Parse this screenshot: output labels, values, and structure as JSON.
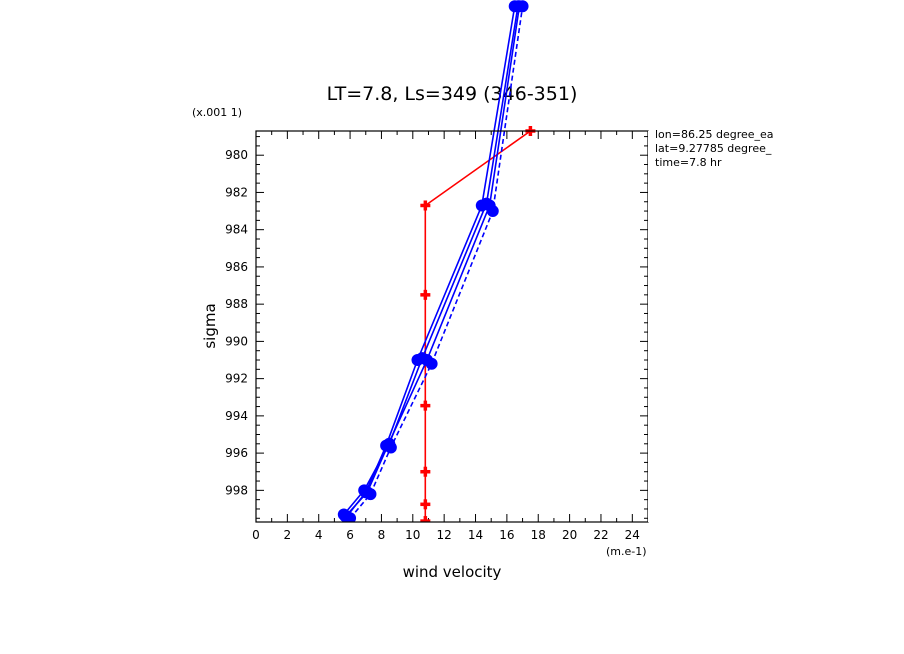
{
  "chart_data": {
    "type": "line",
    "title": "LT=7.8, Ls=349 (346-351)",
    "xlabel": "wind velocity",
    "ylabel": "sigma",
    "x_scale_label": "(m.e-1)",
    "y_scale_label": "(x.001 1)",
    "xlim": [
      0,
      25
    ],
    "ylim": [
      999.7,
      978.7
    ],
    "y_inverted": true,
    "x_ticks": [
      "0",
      "2",
      "4",
      "6",
      "8",
      "10",
      "12",
      "14",
      "16",
      "18",
      "20",
      "22",
      "24"
    ],
    "y_ticks": [
      "980",
      "982",
      "984",
      "986",
      "988",
      "990",
      "992",
      "994",
      "996",
      "998"
    ],
    "annotations": [
      "lon=86.25 degree_ea",
      "lat=9.27785 degree_",
      "time=7.8 hr"
    ],
    "colors": {
      "red": "#ff0000",
      "blue": "#0000ff"
    },
    "series": [
      {
        "color": "red",
        "style": "solid",
        "marker": "plus",
        "x": [
          10.8,
          10.8,
          10.8,
          10.8,
          10.8,
          10.8,
          17.5
        ],
        "y": [
          999.65,
          998.75,
          997.0,
          993.45,
          987.5,
          982.7,
          978.7
        ]
      },
      {
        "color": "blue",
        "style": "solid",
        "marker": "circle",
        "x": [
          5.7,
          7.1,
          8.4,
          10.9,
          14.9,
          16.8
        ],
        "y": [
          999.4,
          998.1,
          995.6,
          991.0,
          982.7,
          972.0
        ]
      },
      {
        "color": "blue",
        "style": "solid",
        "marker": "circle",
        "x": [
          5.8,
          7.0,
          8.3,
          10.3,
          14.4,
          16.5
        ],
        "y": [
          999.4,
          998.1,
          995.6,
          991.0,
          982.7,
          972.0
        ]
      },
      {
        "color": "blue",
        "style": "dashed",
        "marker": "circle",
        "x": [
          6.0,
          7.3,
          8.6,
          11.2,
          15.1,
          17.0
        ],
        "y": [
          999.5,
          998.2,
          995.7,
          991.2,
          983.0,
          972.0
        ]
      },
      {
        "color": "blue",
        "style": "solid",
        "marker": "circle",
        "x": [
          5.6,
          6.9,
          8.5,
          10.6,
          14.7,
          16.7
        ],
        "y": [
          999.3,
          998.0,
          995.5,
          990.9,
          982.6,
          972.0
        ]
      }
    ]
  }
}
